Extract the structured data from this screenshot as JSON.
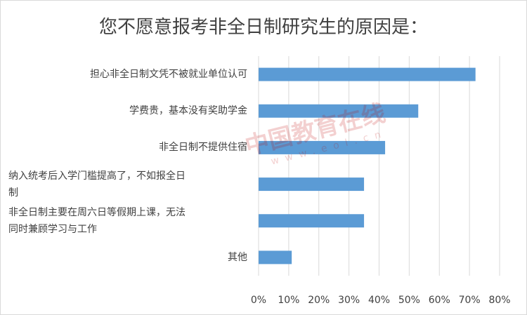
{
  "chart_data": {
    "type": "bar",
    "orientation": "horizontal",
    "title": "您不愿意报考非全日制研究生的原因是：",
    "categories": [
      "担心非全日制文凭不被就业单位认可",
      "学费贵，基本没有奖助学金",
      "非全日制不提供住宿",
      "纳入统考后入学门槛提高了，不如报全日制",
      "非全日制主要在周六日等假期上课，无法同时兼顾学习与工作",
      "其他"
    ],
    "category_lines": [
      [
        "担心非全日制文凭不被就业单位认可"
      ],
      [
        "学费贵，基本没有奖助学金"
      ],
      [
        "非全日制不提供住宿"
      ],
      [
        "纳入统考后入学门槛提高了，不如报全日",
        "制"
      ],
      [
        "非全日制主要在周六日等假期上课，无法",
        "同时兼顾学习与工作"
      ],
      [
        "其他"
      ]
    ],
    "values": [
      0.72,
      0.53,
      0.42,
      0.35,
      0.35,
      0.11
    ],
    "xlim": [
      0,
      0.8
    ],
    "x_ticks": [
      "0%",
      "10%",
      "20%",
      "30%",
      "40%",
      "50%",
      "60%",
      "70%",
      "80%"
    ],
    "grid": true,
    "bar_color": "#5b9bd5"
  },
  "watermark": {
    "main": "中国教育在线",
    "sub": "www.eol.cn"
  }
}
